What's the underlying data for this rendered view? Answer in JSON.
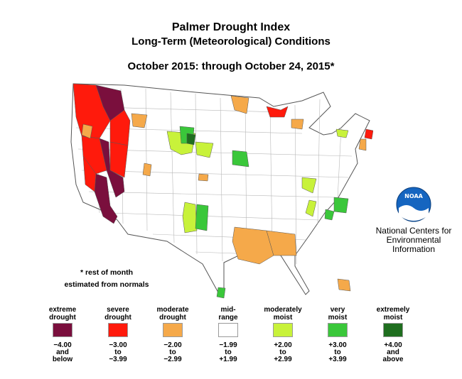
{
  "header": {
    "title": "Palmer Drought Index",
    "subtitle": "Long-Term (Meteorological) Conditions",
    "period": "October 2015: through October 24, 2015*"
  },
  "footnote": {
    "line1": "* rest of month",
    "line2": "estimated from normals"
  },
  "agency": {
    "logo_text": "NOAA",
    "line1": "National Centers for",
    "line2": "Environmental",
    "line3": "Information"
  },
  "legend": [
    {
      "line1": "extreme",
      "line2": "drought",
      "color": "#7a0f3d",
      "range": [
        "−4.00",
        "and",
        "below"
      ]
    },
    {
      "line1": "severe",
      "line2": "drought",
      "color": "#ff1a0c",
      "range": [
        "−3.00",
        "to",
        "−3.99"
      ]
    },
    {
      "line1": "moderate",
      "line2": "drought",
      "color": "#f5a94a",
      "range": [
        "−2.00",
        "to",
        "−2.99"
      ]
    },
    {
      "line1": "mid-",
      "line2": "range",
      "color": "#ffffff",
      "range": [
        "−1.99",
        "to",
        "+1.99"
      ]
    },
    {
      "line1": "moderately",
      "line2": "moist",
      "color": "#c8f23a",
      "range": [
        "+2.00",
        "to",
        "+2.99"
      ]
    },
    {
      "line1": "very",
      "line2": "moist",
      "color": "#3ac73a",
      "range": [
        "+3.00",
        "to",
        "+3.99"
      ]
    },
    {
      "line1": "extremely",
      "line2": "moist",
      "color": "#1f6e1f",
      "range": [
        "+4.00",
        "and",
        "above"
      ]
    }
  ]
}
